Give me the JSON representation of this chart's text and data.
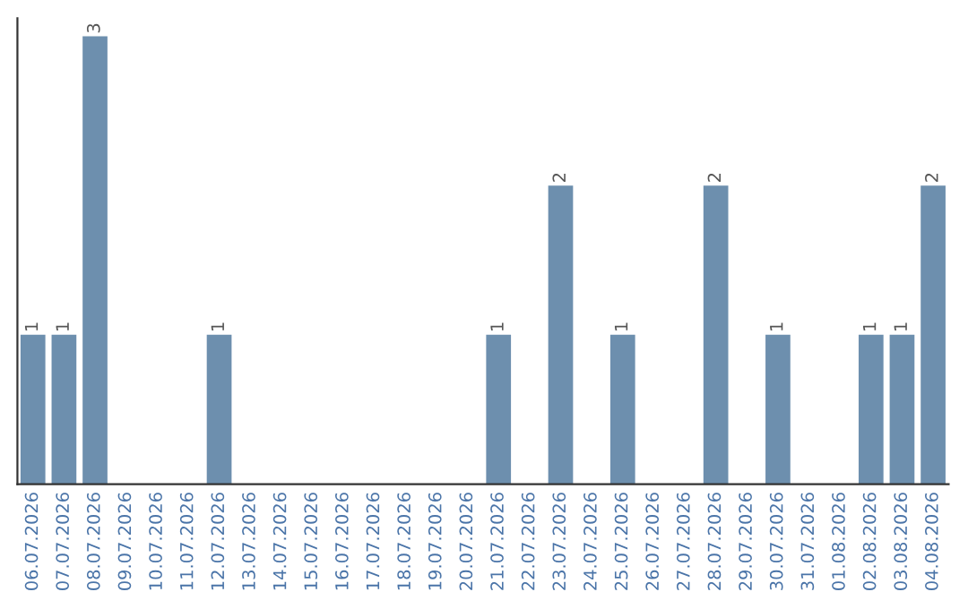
{
  "chart_data": {
    "type": "bar",
    "categories": [
      "06.07.2026",
      "07.07.2026",
      "08.07.2026",
      "09.07.2026",
      "10.07.2026",
      "11.07.2026",
      "12.07.2026",
      "13.07.2026",
      "14.07.2026",
      "15.07.2026",
      "16.07.2026",
      "17.07.2026",
      "18.07.2026",
      "19.07.2026",
      "20.07.2026",
      "21.07.2026",
      "22.07.2026",
      "23.07.2026",
      "24.07.2026",
      "25.07.2026",
      "26.07.2026",
      "27.07.2026",
      "28.07.2026",
      "29.07.2026",
      "30.07.2026",
      "31.07.2026",
      "01.08.2026",
      "02.08.2026",
      "03.08.2026",
      "04.08.2026"
    ],
    "values": [
      1,
      1,
      3,
      0,
      0,
      0,
      1,
      0,
      0,
      0,
      0,
      0,
      0,
      0,
      0,
      1,
      0,
      2,
      0,
      1,
      0,
      0,
      2,
      0,
      1,
      0,
      0,
      1,
      1,
      2
    ],
    "value_labels": [
      "1",
      "1",
      "3",
      null,
      null,
      null,
      "1",
      null,
      null,
      null,
      null,
      null,
      null,
      null,
      null,
      "1",
      null,
      "2",
      null,
      "1",
      null,
      null,
      "2",
      null,
      "1",
      null,
      null,
      "1",
      "1",
      "2"
    ],
    "color": "#6d8fae",
    "tick_labels": "x",
    "grid": false,
    "legend": false
  }
}
